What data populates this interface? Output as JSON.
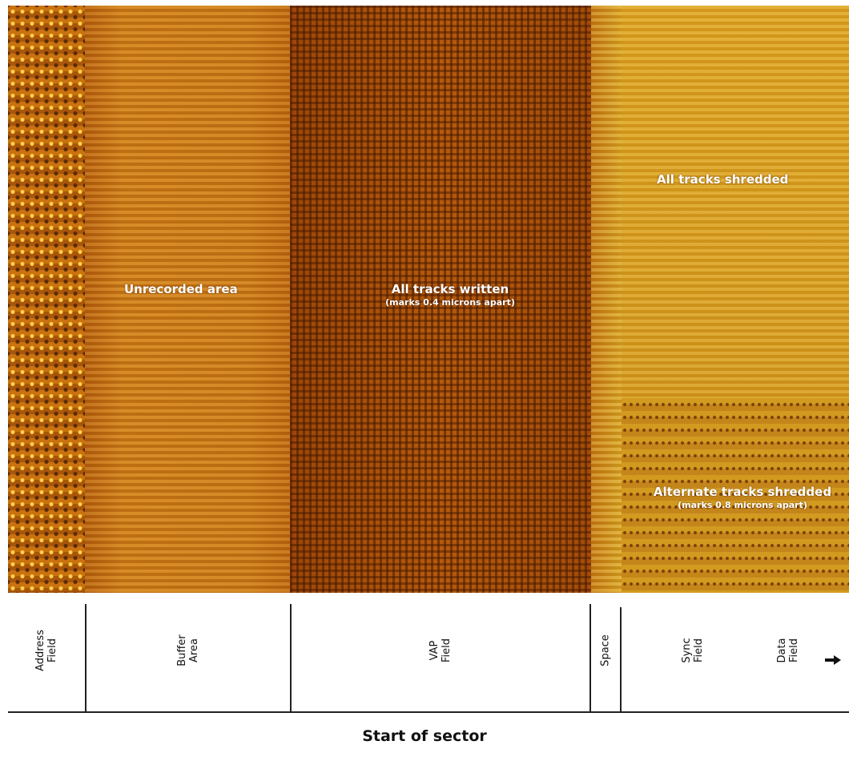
{
  "image": {
    "labels": {
      "unrecorded": "Unrecorded area",
      "written": "All tracks written",
      "written_sub": "(marks 0.4 microns apart)",
      "shredded": "All tracks shredded",
      "alternate": "Alternate tracks shredded",
      "alternate_sub": "(marks 0.8 microns apart)"
    },
    "colors": {
      "address": "#c9720f",
      "buffer": "#cc7a15",
      "vap": "#b55a0c",
      "shredded": "#dca11f"
    }
  },
  "diagram": {
    "fields": [
      {
        "line1": "Address",
        "line2": "Field"
      },
      {
        "line1": "Buffer",
        "line2": "Area"
      },
      {
        "line1": "VAP",
        "line2": "Field"
      },
      {
        "line1": "Space",
        "line2": ""
      },
      {
        "line1": "Sync",
        "line2": "Field"
      },
      {
        "line1": "Data",
        "line2": "Field"
      }
    ],
    "arrow_icon": "right-arrow-icon",
    "caption": "Start of sector"
  }
}
